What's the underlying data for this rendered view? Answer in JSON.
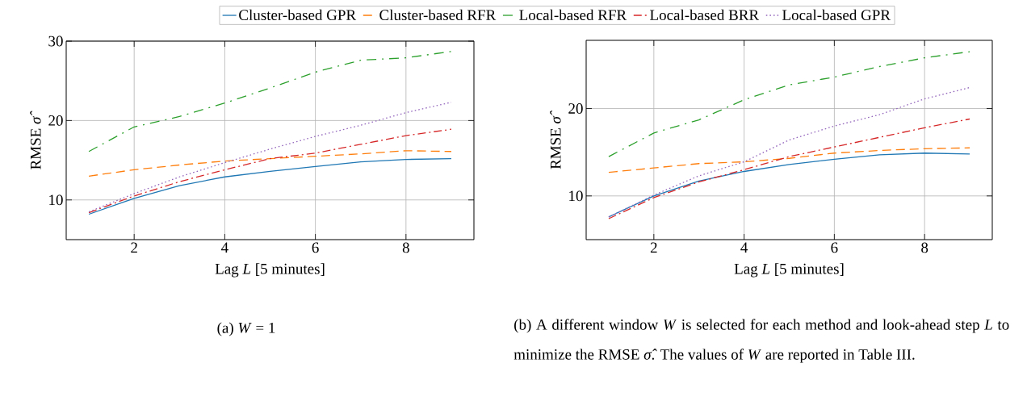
{
  "chart_data": [
    {
      "type": "line",
      "x": [
        1,
        2,
        3,
        4,
        5,
        6,
        7,
        8,
        9
      ],
      "xlabel": "Lag *L* [5 minutes]",
      "ylabel": "RMSE *σ̂*",
      "xlim": [
        0.5,
        9.5
      ],
      "ylim": [
        5,
        30
      ],
      "xticks": [
        2,
        4,
        6,
        8
      ],
      "yticks": [
        10,
        20,
        30
      ],
      "grid": true,
      "legend": "top",
      "marker": "none",
      "series": [
        {
          "name": "Cluster-based GPR",
          "color": "#1f77b4",
          "line_style": "solid",
          "values": [
            8.2,
            10.2,
            11.8,
            12.9,
            13.6,
            14.2,
            14.8,
            15.1,
            15.2
          ]
        },
        {
          "name": "Cluster-based RFR",
          "color": "#ff7f0e",
          "line_style": "dashed",
          "values": [
            13.0,
            13.8,
            14.4,
            14.9,
            15.2,
            15.5,
            15.8,
            16.2,
            16.1
          ]
        },
        {
          "name": "Local-based RFR",
          "color": "#2ca02c",
          "line_style": "loosely dashdot",
          "values": [
            16.1,
            19.2,
            20.5,
            22.2,
            24.1,
            26.1,
            27.6,
            27.9,
            28.7
          ]
        },
        {
          "name": "Local-based BRR",
          "color": "#d62728",
          "line_style": "dashdot",
          "values": [
            8.4,
            10.5,
            12.3,
            13.8,
            15.2,
            15.9,
            17.0,
            18.1,
            18.9
          ]
        },
        {
          "name": "Local-based GPR",
          "color": "#9467bd",
          "line_style": "dotted",
          "values": [
            8.5,
            10.8,
            12.9,
            14.7,
            16.4,
            18.0,
            19.4,
            21.0,
            22.3
          ]
        }
      ],
      "annotations": [
        "(a) *W* = 1"
      ]
    },
    {
      "type": "line",
      "x": [
        1,
        2,
        3,
        4,
        5,
        6,
        7,
        8,
        9
      ],
      "xlabel": "Lag *L* [5 minutes]",
      "ylabel": "RMSE *σ̂*",
      "xlim": [
        0.5,
        9.5
      ],
      "ylim": [
        5,
        27.8
      ],
      "xticks": [
        2,
        4,
        6,
        8
      ],
      "yticks": [
        10,
        20
      ],
      "grid": true,
      "marker": "none",
      "series": [
        {
          "color": "#1f77b4",
          "line_style": "solid",
          "values": [
            7.6,
            10.0,
            11.7,
            12.8,
            13.6,
            14.2,
            14.7,
            14.9,
            14.8
          ]
        },
        {
          "color": "#ff7f0e",
          "line_style": "dashed",
          "values": [
            12.7,
            13.2,
            13.7,
            13.9,
            14.3,
            14.9,
            15.2,
            15.4,
            15.5
          ]
        },
        {
          "color": "#2ca02c",
          "line_style": "loosely dashdot",
          "values": [
            14.5,
            17.2,
            18.7,
            21.0,
            22.7,
            23.6,
            24.8,
            25.8,
            26.5
          ]
        },
        {
          "color": "#d62728",
          "line_style": "dashdot",
          "values": [
            7.4,
            9.8,
            11.6,
            13.0,
            14.5,
            15.6,
            16.7,
            17.8,
            18.8
          ]
        },
        {
          "color": "#9467bd",
          "line_style": "dotted",
          "values": [
            7.6,
            10.1,
            12.3,
            13.9,
            16.4,
            18.0,
            19.3,
            21.1,
            22.4
          ]
        }
      ],
      "annotations": [
        "(b) A different window *W* is selected for each method and look-ahead step *L* to minimize the RMSE *σ̂*. The values of *W* are reported in Table III."
      ]
    }
  ]
}
